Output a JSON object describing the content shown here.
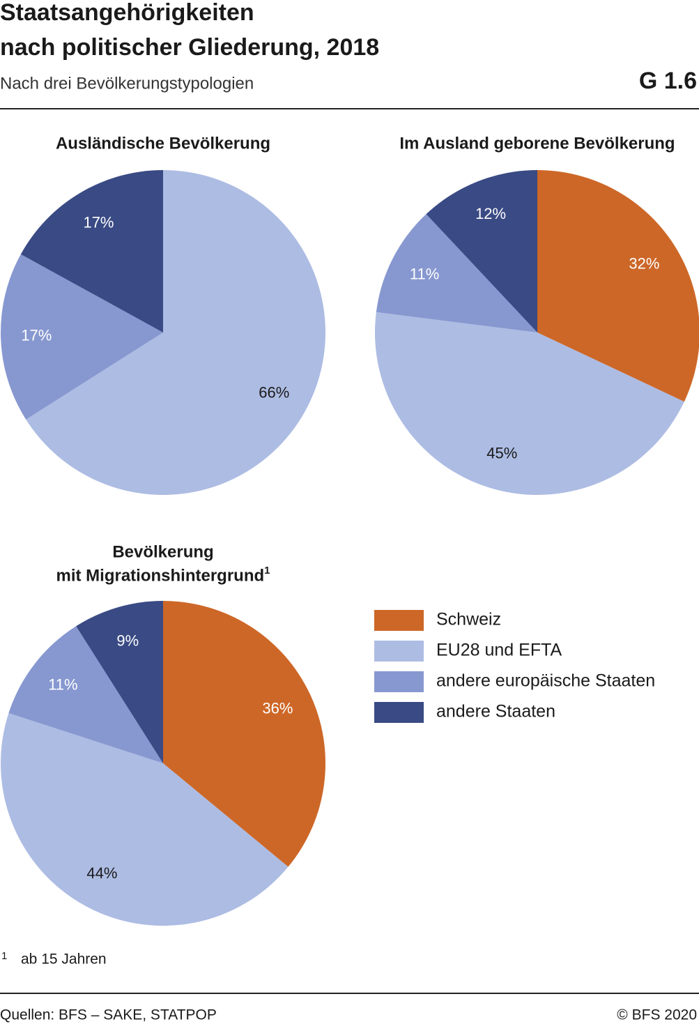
{
  "header": {
    "title": [
      "Staatsangehörigkeiten",
      "nach politischer Gliederung, 2018"
    ],
    "subtitle": "Nach drei Bevölkerungstypologien",
    "code": "G 1.6"
  },
  "legend": {
    "categories": [
      "Schweiz",
      "EU28 und EFTA",
      "andere europäische Staaten",
      "andere Staaten"
    ],
    "colors": [
      "#cd6727",
      "#adbce3",
      "#8798d0",
      "#394a84"
    ]
  },
  "chart_data": [
    {
      "type": "pie",
      "title": [
        "Ausländische Bevölkerung"
      ],
      "values": [
        null,
        66,
        17,
        17
      ],
      "value_labels": [
        null,
        "66%",
        "17%",
        "17%"
      ]
    },
    {
      "type": "pie",
      "title": [
        "Im Ausland geborene Bevölkerung"
      ],
      "values": [
        32,
        45,
        11,
        12
      ],
      "value_labels": [
        "32%",
        "45%",
        "11%",
        "12%"
      ]
    },
    {
      "type": "pie",
      "title": [
        "Bevölkerung",
        "mit Migrationshintergrund"
      ],
      "title_note": "1",
      "values": [
        36,
        44,
        11,
        9
      ],
      "value_labels": [
        "36%",
        "44%",
        "11%",
        "9%"
      ]
    }
  ],
  "footnote": {
    "marker": "1",
    "text": "ab 15 Jahren"
  },
  "footer": {
    "source": "Quellen: BFS – SAKE, STATPOP",
    "copyright": "© BFS 2020"
  }
}
